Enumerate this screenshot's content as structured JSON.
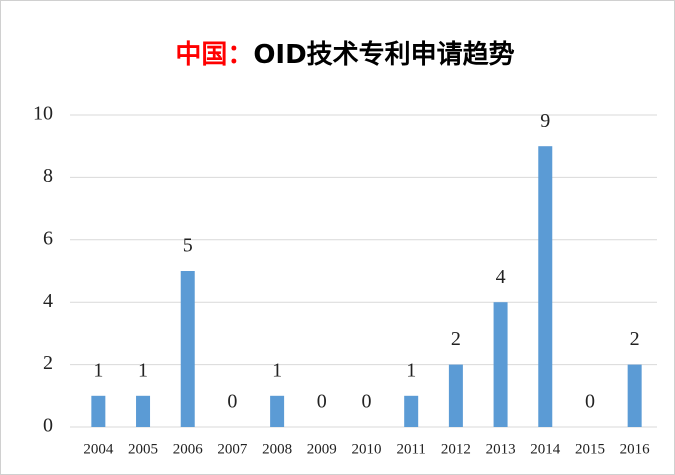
{
  "chart_data": {
    "type": "bar",
    "title": {
      "prefix": "中国：",
      "main": "OID技术专利申请趋势"
    },
    "title_colors": {
      "prefix": "#ff0000",
      "main": "#000000"
    },
    "categories": [
      "2004",
      "2005",
      "2006",
      "2007",
      "2008",
      "2009",
      "2010",
      "2011",
      "2012",
      "2013",
      "2014",
      "2015",
      "2016"
    ],
    "values": [
      1,
      1,
      5,
      0,
      1,
      0,
      0,
      1,
      2,
      4,
      9,
      0,
      2
    ],
    "color": "#5b9bd5",
    "ylim": [
      0,
      10
    ],
    "yticks": [
      0,
      2,
      4,
      6,
      8,
      10
    ],
    "grid": true
  }
}
